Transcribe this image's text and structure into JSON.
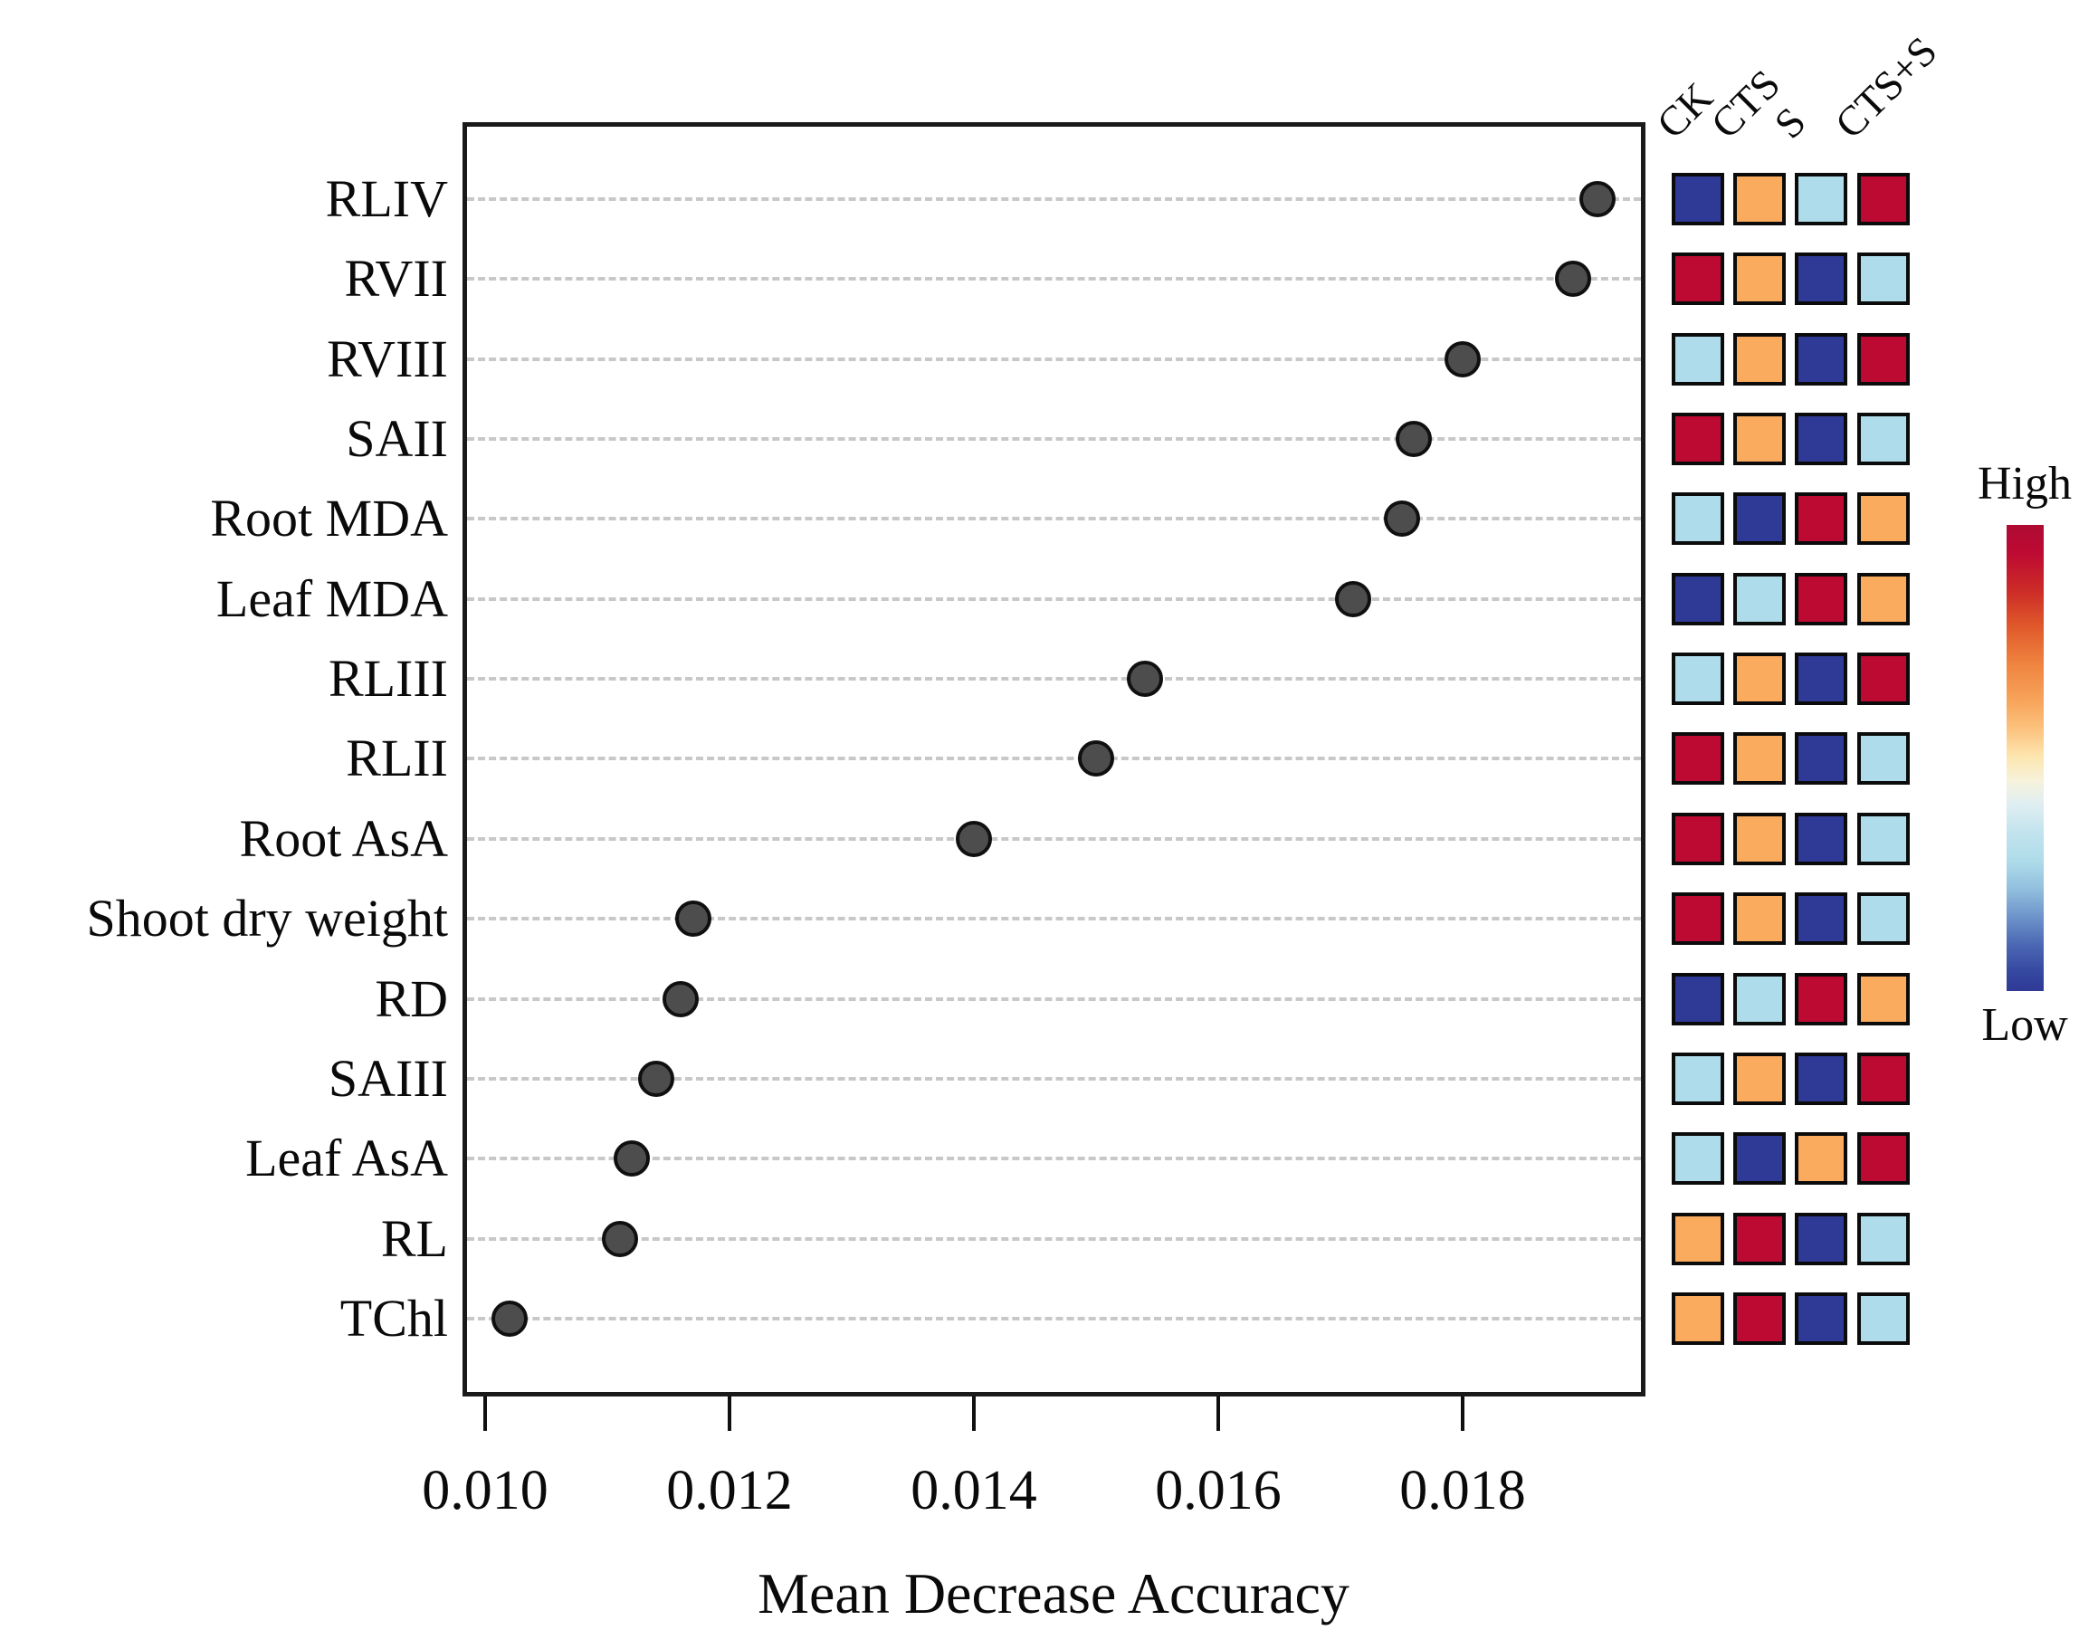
{
  "chart_data": {
    "type": "scatter",
    "title": "",
    "xlabel": "Mean Decrease Accuracy",
    "ylabel": "",
    "xlim": [
      0.00982,
      0.0195
    ],
    "x_ticks": [
      0.01,
      0.012,
      0.014,
      0.016,
      0.018
    ],
    "x_tick_labels": [
      "0.010",
      "0.012",
      "0.014",
      "0.016",
      "0.018"
    ],
    "grid": "horizontal dashed",
    "legend_position": "none",
    "point_color": "#4D4D4D",
    "categories": [
      "RLIV",
      "RVII",
      "RVIII",
      "SAII",
      "Root MDA",
      "Leaf MDA",
      "RLIII",
      "RLII",
      "Root AsA",
      "Shoot dry weight",
      "RD",
      "SAIII",
      "Leaf AsA",
      "RL",
      "TChl"
    ],
    "values": [
      0.0191,
      0.0189,
      0.018,
      0.0176,
      0.0175,
      0.0171,
      0.0154,
      0.015,
      0.014,
      0.0117,
      0.0116,
      0.0114,
      0.0112,
      0.0111,
      0.0102
    ]
  },
  "heatmap": {
    "columns": [
      "CK",
      "CTS",
      "S",
      "CTS+S"
    ],
    "palette": {
      "darkblue": "#2F3A96",
      "lightblue": "#AFDCEA",
      "orange": "#FAAB5E",
      "darkred": "#BD0A33"
    },
    "rows": [
      {
        "label": "RLIV",
        "cells": [
          "darkblue",
          "orange",
          "lightblue",
          "darkred"
        ]
      },
      {
        "label": "RVII",
        "cells": [
          "darkred",
          "orange",
          "darkblue",
          "lightblue"
        ]
      },
      {
        "label": "RVIII",
        "cells": [
          "lightblue",
          "orange",
          "darkblue",
          "darkred"
        ]
      },
      {
        "label": "SAII",
        "cells": [
          "darkred",
          "orange",
          "darkblue",
          "lightblue"
        ]
      },
      {
        "label": "Root MDA",
        "cells": [
          "lightblue",
          "darkblue",
          "darkred",
          "orange"
        ]
      },
      {
        "label": "Leaf MDA",
        "cells": [
          "darkblue",
          "lightblue",
          "darkred",
          "orange"
        ]
      },
      {
        "label": "RLIII",
        "cells": [
          "lightblue",
          "orange",
          "darkblue",
          "darkred"
        ]
      },
      {
        "label": "RLII",
        "cells": [
          "darkred",
          "orange",
          "darkblue",
          "lightblue"
        ]
      },
      {
        "label": "Root AsA",
        "cells": [
          "darkred",
          "orange",
          "darkblue",
          "lightblue"
        ]
      },
      {
        "label": "Shoot dry weight",
        "cells": [
          "darkred",
          "orange",
          "darkblue",
          "lightblue"
        ]
      },
      {
        "label": "RD",
        "cells": [
          "darkblue",
          "lightblue",
          "darkred",
          "orange"
        ]
      },
      {
        "label": "SAIII",
        "cells": [
          "lightblue",
          "orange",
          "darkblue",
          "darkred"
        ]
      },
      {
        "label": "Leaf AsA",
        "cells": [
          "lightblue",
          "darkblue",
          "orange",
          "darkred"
        ]
      },
      {
        "label": "RL",
        "cells": [
          "orange",
          "darkred",
          "darkblue",
          "lightblue"
        ]
      },
      {
        "label": "TChl",
        "cells": [
          "orange",
          "darkred",
          "darkblue",
          "lightblue"
        ]
      }
    ],
    "scale": {
      "high": "High",
      "low": "Low"
    }
  }
}
